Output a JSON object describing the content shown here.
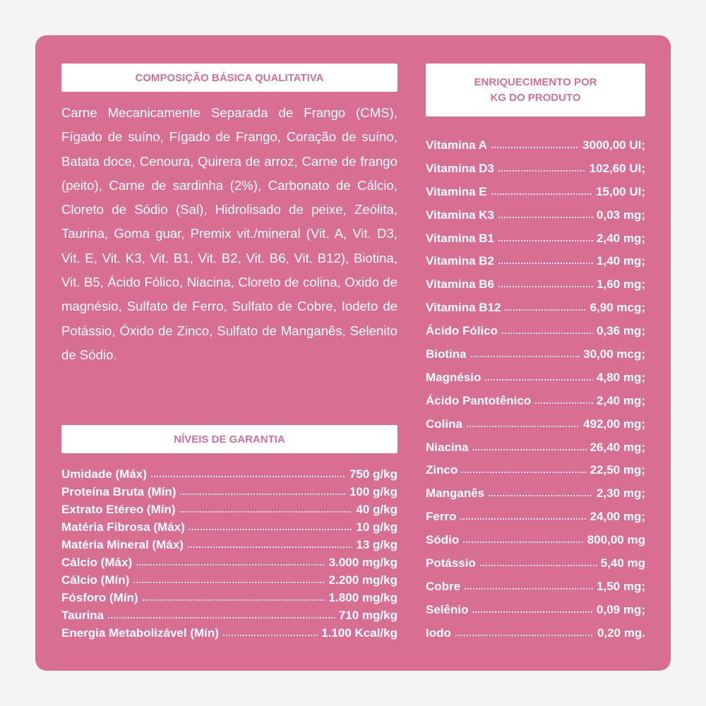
{
  "composicao": {
    "title": "COMPOSIÇÃO BÁSICA QUALITATIVA",
    "text": "Carne Mecanicamente Separada de Frango (CMS), Fígado de suíno, Fígado de Frango, Coração de suíno, Batata doce, Cenoura, Quirera de arroz, Carne de frango (peito), Carne de sardinha (2%), Carbonato de Cálcio, Cloreto de Sódio (Sal), Hidrolisado de peixe, Zeólita, Taurina, Goma guar, Premix vit./mineral (Vit. A, Vit. D3, Vit. E, Vit. K3, Vit. B1, Vit. B2, Vit. B6, Vit. B12), Biotina, Vit. B5, Ácido Fólico, Niacina, Cloreto de colina, Oxido de magnésio, Sulfato de Ferro, Sulfato de Cobre, Iodeto de Potássio, Óxido de Zinco, Sulfato de Manganês, Selenito de Sódio."
  },
  "niveis": {
    "title": "NÍVEIS DE GARANTIA",
    "rows": [
      [
        "Umidade (Máx)",
        "750 g/kg"
      ],
      [
        "Proteína Bruta (Mín)",
        "100 g/kg"
      ],
      [
        "Extrato Etéreo (Mín)",
        "40 g/kg"
      ],
      [
        "Matéria Fibrosa (Máx)",
        "10 g/kg"
      ],
      [
        "Matéria Mineral (Máx)",
        "13 g/kg"
      ],
      [
        "Cálcio (Máx)",
        "3.000 mg/kg"
      ],
      [
        "Cálcio (Mín)",
        "2.200 mg/kg"
      ],
      [
        "Fósforo (Mín)",
        "1.800 mg/kg"
      ],
      [
        "Taurina",
        "710 mg/kg"
      ],
      [
        "Energia Metabolizável (Mín)",
        "1.100 Kcal/kg"
      ]
    ]
  },
  "enriquecimento": {
    "title": [
      "ENRIQUECIMENTO POR",
      "KG DO PRODUTO"
    ],
    "rows": [
      [
        "Vitamina A",
        "3000,00 UI;"
      ],
      [
        "Vitamina D3",
        "102,60 UI;"
      ],
      [
        "Vitamina E",
        "15,00 UI;"
      ],
      [
        "Vitamina K3",
        "0,03 mg;"
      ],
      [
        "Vitamina B1",
        "2,40 mg;"
      ],
      [
        "Vitamina B2",
        "1,40 mg;"
      ],
      [
        "Vitamina B6",
        "1,60 mg;"
      ],
      [
        "Vitamina B12",
        "6,90 mcg;"
      ],
      [
        "Ácido Fólico",
        "0,36 mg;"
      ],
      [
        "Biotina",
        "30,00 mcg;"
      ],
      [
        "Magnésio",
        "4,80 mg;"
      ],
      [
        "Ácido Pantotênico",
        "2,40 mg;"
      ],
      [
        "Colina",
        "492,00 mg;"
      ],
      [
        "Niacina",
        "26,40 mg;"
      ],
      [
        "Zinco",
        "22,50 mg;"
      ],
      [
        "Manganês",
        "2,30 mg;"
      ],
      [
        "Ferro",
        "24,00 mg;"
      ],
      [
        "Sódio",
        "800,00 mg"
      ],
      [
        "Potássio",
        "5,40 mg"
      ],
      [
        "Cobre",
        "1,50 mg;"
      ],
      [
        "Selênio",
        "0,09 mg;"
      ],
      [
        "Iodo",
        "0,20 mg."
      ]
    ]
  }
}
